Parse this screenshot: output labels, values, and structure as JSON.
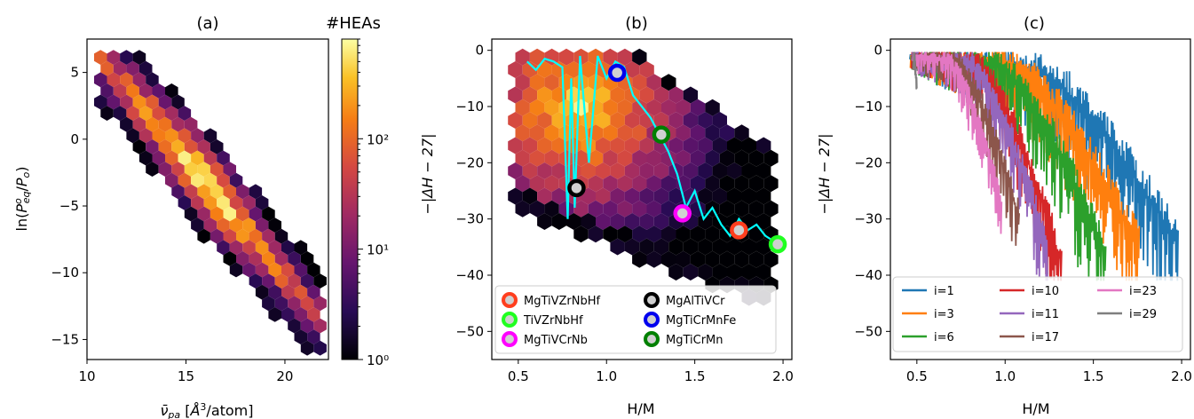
{
  "chart_data": [
    {
      "panel": "(a)",
      "type": "heatmap",
      "title": "(a)",
      "xlabel": "ν̄pa [Å³/atom]",
      "ylabel": "ln(Poeq/Po)",
      "xlim": [
        10,
        22.2
      ],
      "ylim": [
        -16.5,
        7.5
      ],
      "xticks": [
        10,
        15,
        20
      ],
      "yticks": [
        5,
        0,
        -5,
        -10,
        -15
      ],
      "ytick_labels": [
        "5",
        "0",
        "−5",
        "−10",
        "−15"
      ],
      "colorbar": {
        "title": "#HEAs",
        "scale": "log",
        "range": [
          1,
          800
        ],
        "ticks": [
          "10⁰",
          "10¹",
          "10²"
        ],
        "colormap": "inferno"
      },
      "bands": [
        [
          11,
          5.6,
          0.2
        ],
        [
          11.2,
          5.5,
          0.3
        ],
        [
          11.6,
          4.9,
          0.8
        ],
        [
          12.0,
          4.8,
          0.25
        ],
        [
          11.5,
          2.2,
          0.1
        ],
        [
          12.0,
          2.5,
          0.3
        ],
        [
          12.5,
          1.8,
          0.55
        ],
        [
          13.0,
          1.2,
          0.75
        ],
        [
          13.5,
          0.5,
          0.7
        ],
        [
          14.0,
          0.0,
          0.82
        ],
        [
          14.5,
          -0.8,
          0.95
        ],
        [
          15.0,
          -1.8,
          1.0
        ],
        [
          15.5,
          -2.5,
          0.97
        ],
        [
          16.0,
          -3.3,
          0.92
        ],
        [
          16.5,
          -4.2,
          0.85
        ],
        [
          17.0,
          -5.5,
          0.78
        ],
        [
          17.5,
          -7.0,
          0.72
        ],
        [
          18.0,
          -8.3,
          0.62
        ],
        [
          18.5,
          -9.7,
          0.55
        ],
        [
          19.0,
          -11.0,
          0.45
        ],
        [
          19.5,
          -12.0,
          0.35
        ],
        [
          20.0,
          -12.5,
          0.28
        ],
        [
          20.5,
          -13.0,
          0.18
        ],
        [
          21.0,
          -13.5,
          0.12
        ]
      ]
    },
    {
      "panel": "(b)",
      "type": "scatter",
      "title": "(b)",
      "xlabel": "H/M",
      "ylabel": "−|ΔH − 27|",
      "xlim": [
        0.35,
        2.05
      ],
      "ylim": [
        -55,
        2
      ],
      "xticks": [
        0.5,
        1.0,
        1.5,
        2.0
      ],
      "xtick_labels": [
        "0.5",
        "1.0",
        "1.5",
        "2.0"
      ],
      "yticks": [
        0,
        -10,
        -20,
        -30,
        -40,
        -50
      ],
      "ytick_labels": [
        "0",
        "−10",
        "−20",
        "−30",
        "−40",
        "−50"
      ],
      "line_color": "#00ffff",
      "line_x": [
        0.55,
        0.6,
        0.65,
        0.7,
        0.75,
        0.78,
        0.8,
        0.82,
        0.85,
        0.9,
        0.95,
        1.0,
        1.05,
        1.1,
        1.15,
        1.2,
        1.25,
        1.3,
        1.35,
        1.4,
        1.45,
        1.5,
        1.55,
        1.6,
        1.65,
        1.7,
        1.75,
        1.8,
        1.85,
        1.9,
        1.95
      ],
      "line_y": [
        -2,
        -3.5,
        -1.5,
        -2,
        -3,
        -30,
        -5,
        -28,
        -1,
        -20,
        -1,
        -5,
        -2,
        -3,
        -8,
        -10,
        -12,
        -15,
        -18,
        -22,
        -28,
        -25,
        -30,
        -28,
        -31,
        -33,
        -30,
        -32,
        -31,
        -33,
        -34
      ],
      "markers": [
        {
          "label": "MgTiVZrNbHf",
          "color": "#ff3e1e",
          "x": 1.75,
          "y": -32
        },
        {
          "label": "TiVZrNbHf",
          "color": "#20ff20",
          "x": 1.97,
          "y": -34.5
        },
        {
          "label": "MgTiVCrNb",
          "color": "#ff00ff",
          "x": 1.43,
          "y": -29
        },
        {
          "label": "MgAlTiVCr",
          "color": "#000000",
          "x": 0.83,
          "y": -24.5
        },
        {
          "label": "MgTiCrMnFe",
          "color": "#0000ee",
          "x": 1.06,
          "y": -4
        },
        {
          "label": "MgTiCrMn",
          "color": "#008000",
          "x": 1.31,
          "y": -15
        }
      ],
      "legend_placement": "lower-center"
    },
    {
      "panel": "(c)",
      "type": "line",
      "title": "(c)",
      "xlabel": "H/M",
      "ylabel": "−|ΔH − 27|",
      "xlim": [
        0.35,
        2.05
      ],
      "ylim": [
        -55,
        2
      ],
      "xticks": [
        0.5,
        1.0,
        1.5,
        2.0
      ],
      "xtick_labels": [
        "0.5",
        "1.0",
        "1.5",
        "2.0"
      ],
      "yticks": [
        0,
        -10,
        -20,
        -30,
        -40,
        -50
      ],
      "ytick_labels": [
        "0",
        "−10",
        "−20",
        "−30",
        "−40",
        "−50"
      ],
      "legend_placement": "lower-center",
      "series": [
        {
          "name": "i=1",
          "color": "#1f77b4",
          "xmax": 1.98,
          "end_y": -34.5
        },
        {
          "name": "i=3",
          "color": "#ff7f0e",
          "xmax": 1.76,
          "end_y": -35
        },
        {
          "name": "i=6",
          "color": "#2ca02c",
          "xmax": 1.57,
          "end_y": -36
        },
        {
          "name": "i=10",
          "color": "#d62728",
          "xmax": 1.32,
          "end_y": -38
        },
        {
          "name": "i=11",
          "color": "#9467bd",
          "xmax": 1.24,
          "end_y": -35
        },
        {
          "name": "i=17",
          "color": "#8c564b",
          "xmax": 1.08,
          "end_y": -30
        },
        {
          "name": "i=23",
          "color": "#e377c2",
          "xmax": 0.98,
          "end_y": -27
        },
        {
          "name": "i=29",
          "color": "#7f7f7f",
          "xmax": 0.5,
          "end_y": -6
        }
      ]
    }
  ]
}
